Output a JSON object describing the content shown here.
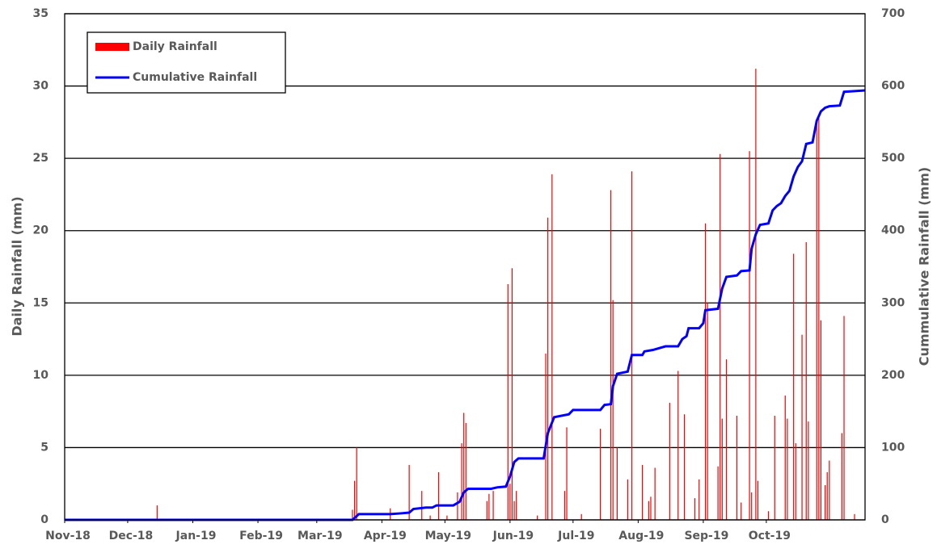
{
  "chart_data": {
    "type": "bar_line",
    "y_label": "Daily Rainfall (mm)",
    "y2_label": "Cummulative Rainfall (mm)",
    "xlim": [
      0,
      381
    ],
    "xticks": [
      {
        "value": 0,
        "label": "Nov-18"
      },
      {
        "value": 30,
        "label": "Dec-18"
      },
      {
        "value": 61,
        "label": "Jan-19"
      },
      {
        "value": 92,
        "label": "Feb-19"
      },
      {
        "value": 120,
        "label": "Mar-19"
      },
      {
        "value": 151,
        "label": "Apr-19"
      },
      {
        "value": 181,
        "label": "May-19"
      },
      {
        "value": 212,
        "label": "Jun-19"
      },
      {
        "value": 242,
        "label": "Jul-19"
      },
      {
        "value": 273,
        "label": "Aug-19"
      },
      {
        "value": 304,
        "label": "Sep-19"
      },
      {
        "value": 334,
        "label": "Oct-19"
      }
    ],
    "ylim": [
      0,
      35
    ],
    "yticks": [
      0,
      5,
      10,
      15,
      20,
      25,
      30,
      35
    ],
    "y2lim": [
      0,
      700
    ],
    "y2ticks": [
      0,
      100,
      200,
      300,
      400,
      500,
      600,
      700
    ],
    "grid": true,
    "legend": "top-left",
    "series": [
      {
        "name": "Daily Rainfall",
        "color": "#ff0000",
        "kind": "bar",
        "x": [
          44,
          137,
          138,
          139,
          155,
          164,
          170,
          174,
          178,
          182,
          187,
          189,
          190,
          191,
          201,
          202,
          204,
          211,
          212,
          213,
          214,
          215,
          225,
          229,
          230,
          232,
          238,
          239,
          246,
          255,
          260,
          261,
          263,
          268,
          270,
          275,
          278,
          279,
          281,
          288,
          292,
          295,
          300,
          302,
          305,
          306,
          311,
          312,
          313,
          315,
          320,
          322,
          326,
          327,
          329,
          330,
          335,
          338,
          343,
          344,
          347,
          348,
          351,
          353,
          354,
          358,
          359,
          360,
          362,
          363,
          364,
          370,
          371,
          376
        ],
        "values": [
          1,
          0.7,
          2.7,
          5,
          0.8,
          3.8,
          2,
          0.3,
          3.3,
          0.3,
          1.9,
          5.3,
          7.4,
          6.7,
          1.3,
          1.8,
          2,
          16.3,
          2.5,
          17.4,
          1.3,
          2,
          0.3,
          11.5,
          20.9,
          23.9,
          2,
          6.4,
          0.4,
          6.3,
          22.8,
          15.2,
          5,
          2.8,
          24.1,
          3.8,
          1.3,
          1.6,
          3.6,
          8.1,
          10.3,
          7.3,
          1.5,
          2.8,
          20.5,
          15,
          3.7,
          25.3,
          7,
          11.1,
          7.2,
          1.2,
          25.5,
          1.9,
          31.2,
          2.7,
          0.6,
          7.2,
          8.6,
          7,
          18.4,
          5.3,
          12.8,
          19.2,
          6.8,
          27.5,
          28,
          13.8,
          2.4,
          3.3,
          4.1,
          6,
          14.1,
          0.4
        ]
      },
      {
        "name": "Cumulative Rainfall",
        "color": "#0000ff",
        "kind": "line",
        "axis": "y2",
        "x": [
          0,
          137,
          140,
          155,
          160,
          164,
          166,
          172,
          175,
          177,
          185,
          188,
          190,
          192,
          203,
          206,
          210,
          212,
          214,
          216,
          228,
          230,
          233,
          240,
          242,
          255,
          257,
          260,
          261,
          263,
          268,
          270,
          275,
          276,
          280,
          286,
          292,
          294,
          296,
          297,
          302,
          304,
          305,
          311,
          313,
          315,
          320,
          322,
          326,
          327,
          329,
          331,
          335,
          337,
          339,
          341,
          343,
          345,
          347,
          349,
          351,
          353,
          356,
          358,
          360,
          362,
          364,
          369,
          371,
          376,
          381
        ],
        "values": [
          0,
          0,
          8,
          8,
          9,
          10,
          15,
          17,
          17,
          20,
          20,
          25,
          38,
          43,
          43,
          45,
          46,
          60,
          80,
          85,
          85,
          120,
          142,
          146,
          152,
          152,
          159,
          160,
          185,
          202,
          205,
          228,
          228,
          233,
          235,
          240,
          240,
          250,
          254,
          265,
          265,
          272,
          290,
          292,
          320,
          336,
          338,
          344,
          345,
          375,
          395,
          408,
          410,
          428,
          434,
          438,
          448,
          455,
          475,
          488,
          496,
          520,
          522,
          552,
          565,
          570,
          572,
          573,
          592,
          593,
          594
        ]
      }
    ]
  }
}
